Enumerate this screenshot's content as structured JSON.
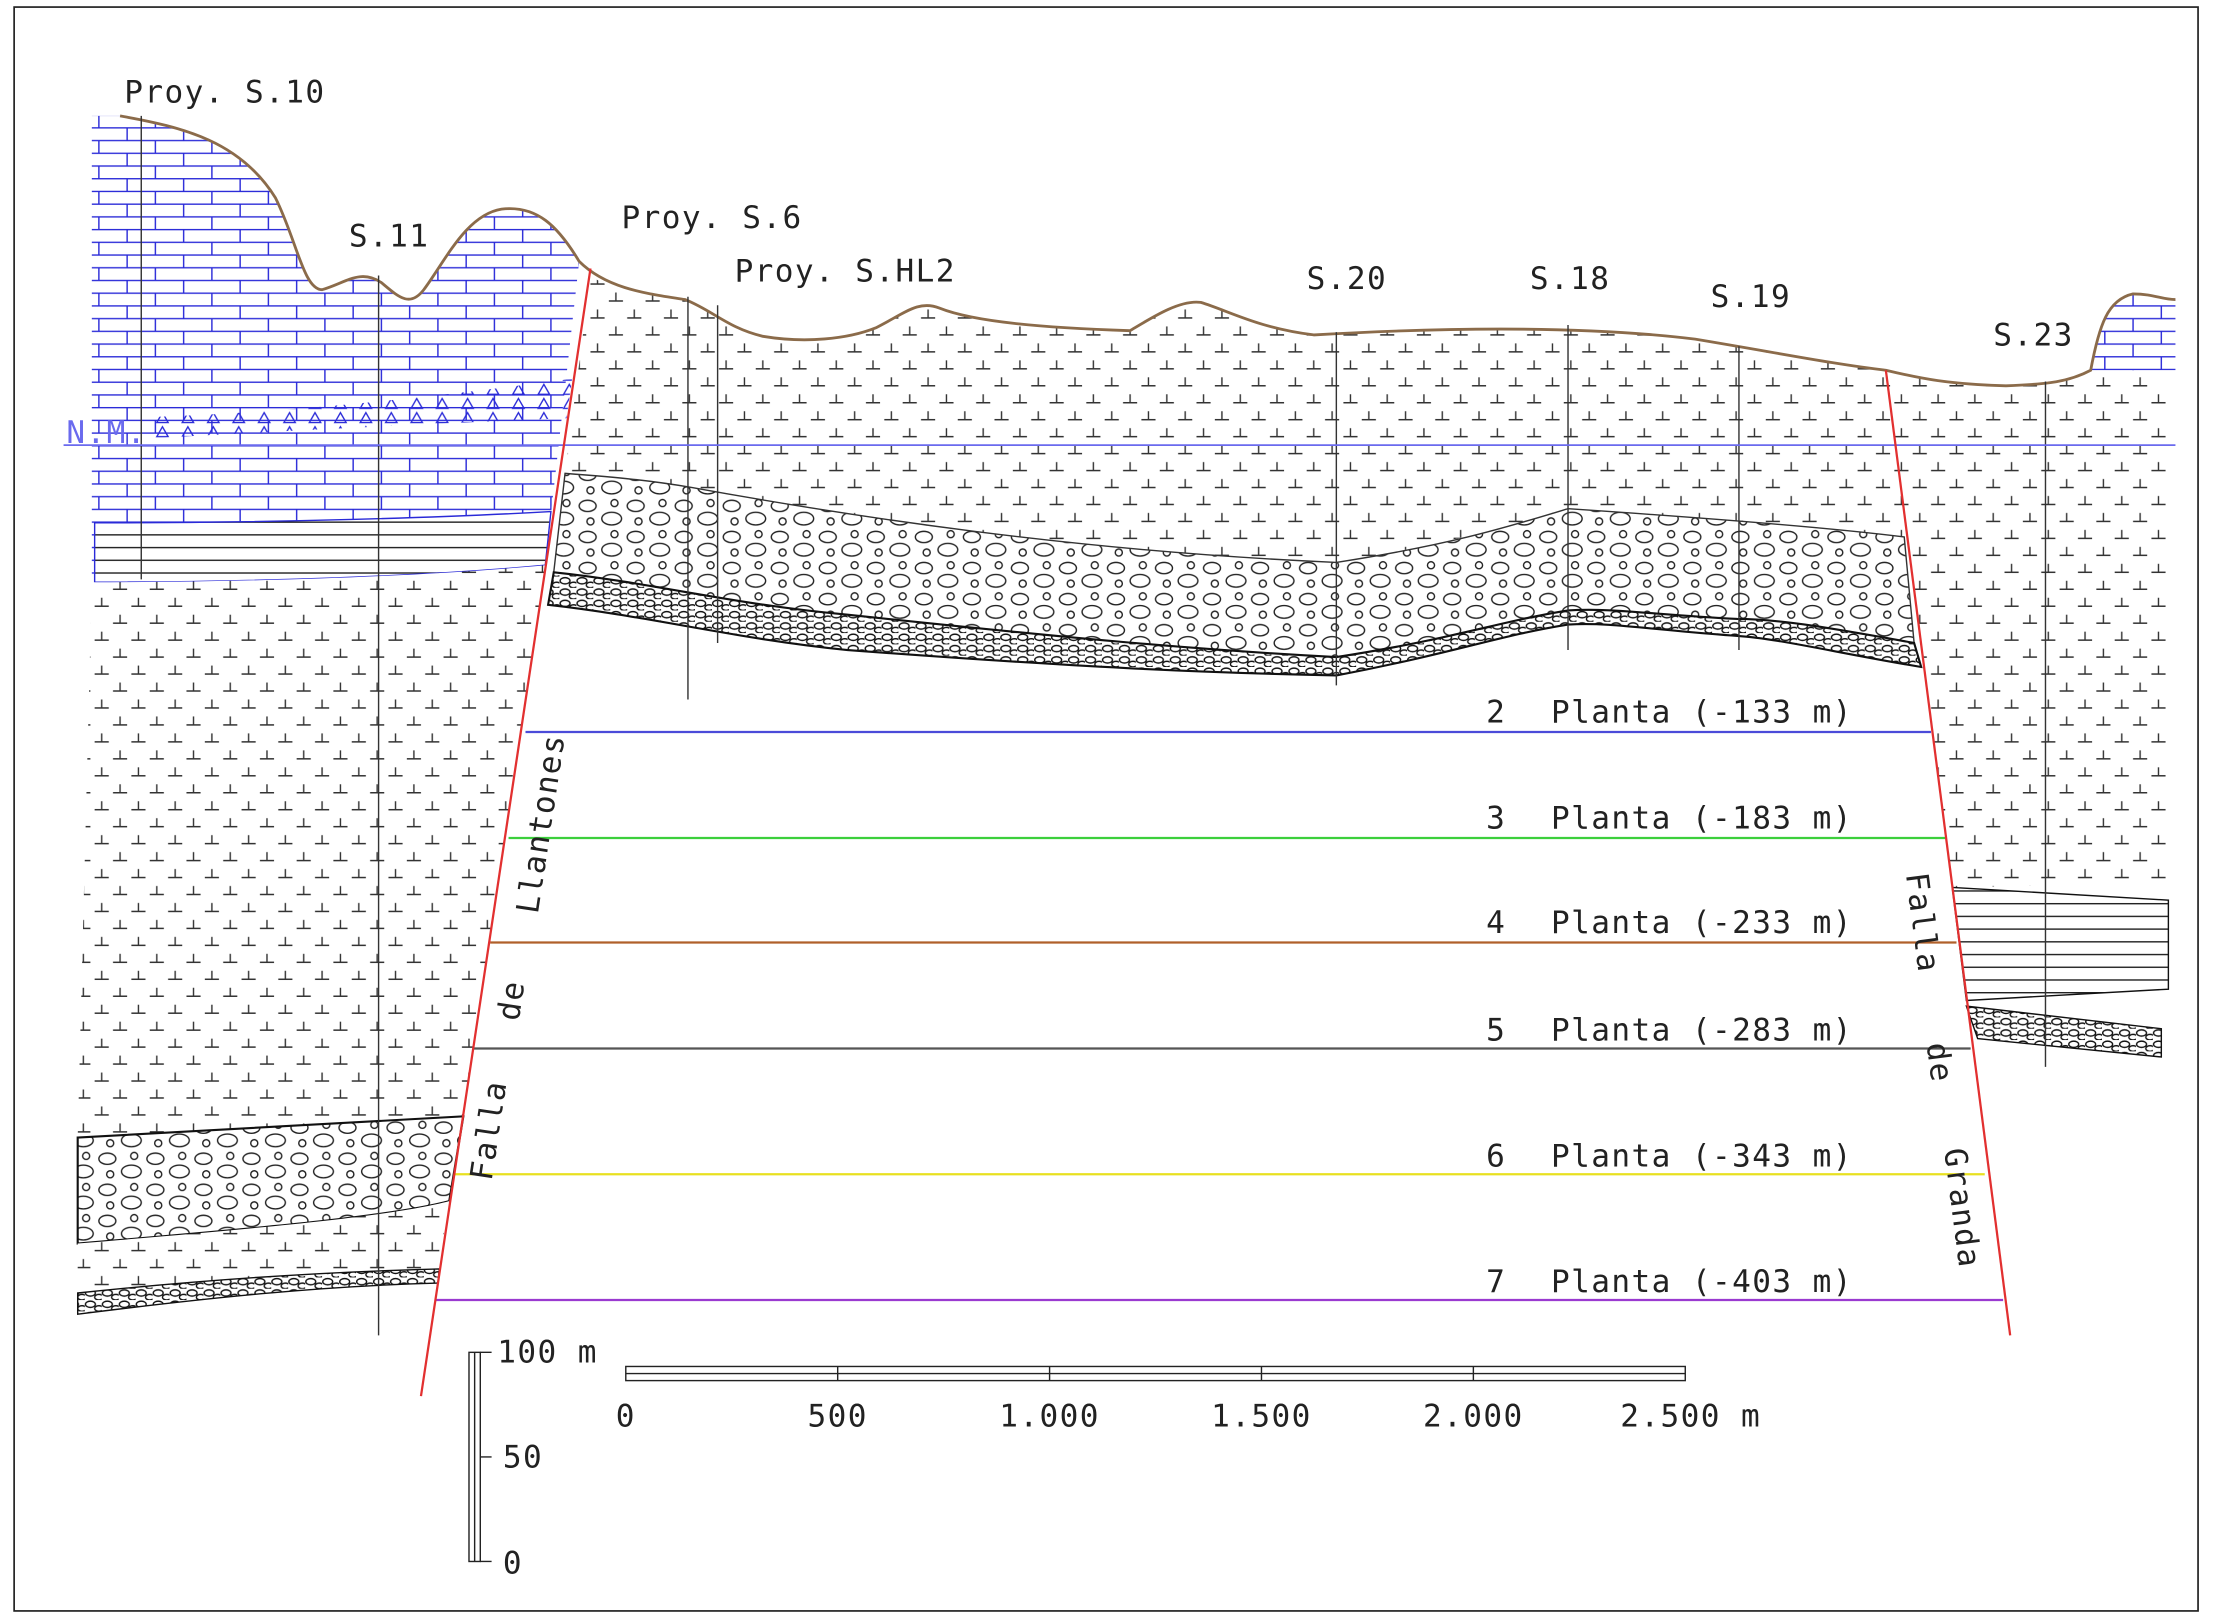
{
  "boreholes": [
    "Proy. S.10",
    "S.11",
    "Proy. S.6",
    "Proy. S.HL2",
    "S.20",
    "S.18",
    "S.19",
    "S.23"
  ],
  "sea_level": "N.M.",
  "faults": [
    {
      "words": [
        "Falla",
        "de",
        "Llantones"
      ]
    },
    {
      "words": [
        "Falla",
        "de",
        "Granda"
      ]
    }
  ],
  "levels": [
    {
      "number": "2",
      "label": "Planta (-133 m)"
    },
    {
      "number": "3",
      "label": "Planta (-183 m)"
    },
    {
      "number": "4",
      "label": "Planta (-233 m)"
    },
    {
      "number": "5",
      "label": "Planta (-283 m)"
    },
    {
      "number": "6",
      "label": "Planta (-343 m)"
    },
    {
      "number": "7",
      "label": "Planta (-403 m)"
    }
  ],
  "horizontal_scale": {
    "ticks": [
      "0",
      "500",
      "1.000",
      "1.500",
      "2.000",
      "2.500 m"
    ]
  },
  "vertical_scale": {
    "ticks": [
      "100 m",
      "50",
      "0"
    ]
  }
}
